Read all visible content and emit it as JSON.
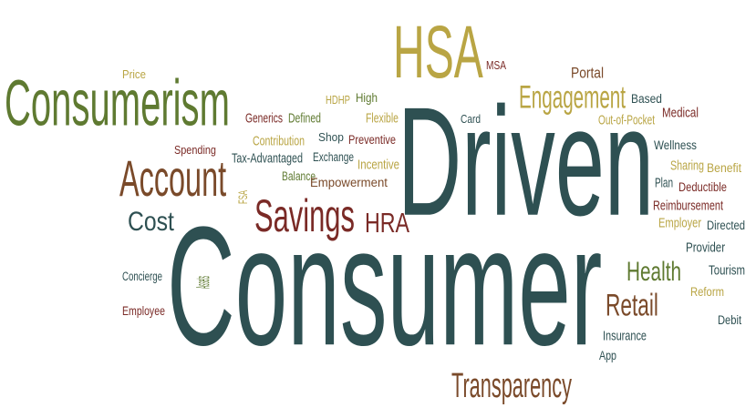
{
  "palette": {
    "olive": "#5f7a31",
    "teal": "#2e5052",
    "maroon": "#7a2a26",
    "brown": "#7a4a2a",
    "gold": "#b9a544",
    "darkbrown": "#6a4226"
  },
  "words": [
    {
      "text": "Consumer",
      "color": "#2e5052"
    },
    {
      "text": "Driven",
      "color": "#2e5052"
    },
    {
      "text": "Consumerism",
      "color": "#5f7a31"
    },
    {
      "text": "HSA",
      "color": "#b9a544"
    },
    {
      "text": "Account",
      "color": "#7a4a2a"
    },
    {
      "text": "Savings",
      "color": "#7a2a26"
    },
    {
      "text": "Engagement",
      "color": "#b9a544"
    },
    {
      "text": "Transparency",
      "color": "#7a4a2a"
    },
    {
      "text": "Health",
      "color": "#5f7a31"
    },
    {
      "text": "Retail",
      "color": "#7a4a2a"
    },
    {
      "text": "Cost",
      "color": "#2e5052"
    },
    {
      "text": "HRA",
      "color": "#7a2a26"
    },
    {
      "text": "MSA",
      "color": "#7a2a26"
    },
    {
      "text": "Portal",
      "color": "#7a4a2a"
    },
    {
      "text": "Price",
      "color": "#b9a544"
    },
    {
      "text": "Based",
      "color": "#2e5052"
    },
    {
      "text": "Card",
      "color": "#2e5052"
    },
    {
      "text": "High",
      "color": "#5f7a31"
    },
    {
      "text": "HDHP",
      "color": "#b9a544"
    },
    {
      "text": "Flexible",
      "color": "#b9a544"
    },
    {
      "text": "Medical",
      "color": "#7a2a26"
    },
    {
      "text": "Out-of-Pocket",
      "color": "#b9a544"
    },
    {
      "text": "Generics",
      "color": "#7a2a26"
    },
    {
      "text": "Defined",
      "color": "#5f7a31"
    },
    {
      "text": "Contribution",
      "color": "#b9a544"
    },
    {
      "text": "Shop",
      "color": "#2e5052"
    },
    {
      "text": "Preventive",
      "color": "#7a2a26"
    },
    {
      "text": "Spending",
      "color": "#7a2a26"
    },
    {
      "text": "Tax-Advantaged",
      "color": "#2e5052"
    },
    {
      "text": "Exchange",
      "color": "#2e5052"
    },
    {
      "text": "Incentive",
      "color": "#b9a544"
    },
    {
      "text": "Balance",
      "color": "#5f7a31"
    },
    {
      "text": "Empowerment",
      "color": "#7a4a2a"
    },
    {
      "text": "FSA",
      "color": "#b9a544"
    },
    {
      "text": "Wellness",
      "color": "#2e5052"
    },
    {
      "text": "Sharing",
      "color": "#b9a544"
    },
    {
      "text": "Benefit",
      "color": "#b9a544"
    },
    {
      "text": "Plan",
      "color": "#2e5052"
    },
    {
      "text": "Deductible",
      "color": "#7a2a26"
    },
    {
      "text": "Reimbursement",
      "color": "#7a2a26"
    },
    {
      "text": "Employer",
      "color": "#b9a544"
    },
    {
      "text": "Directed",
      "color": "#2e5052"
    },
    {
      "text": "Provider",
      "color": "#2e5052"
    },
    {
      "text": "Tourism",
      "color": "#2e5052"
    },
    {
      "text": "Reform",
      "color": "#b9a544"
    },
    {
      "text": "Concierge",
      "color": "#2e5052"
    },
    {
      "text": "Assets",
      "color": "#5f7a31"
    },
    {
      "text": "Employee",
      "color": "#7a2a26"
    },
    {
      "text": "Insurance",
      "color": "#2e5052"
    },
    {
      "text": "App",
      "color": "#2e5052"
    },
    {
      "text": "Debit",
      "color": "#2e5052"
    }
  ]
}
